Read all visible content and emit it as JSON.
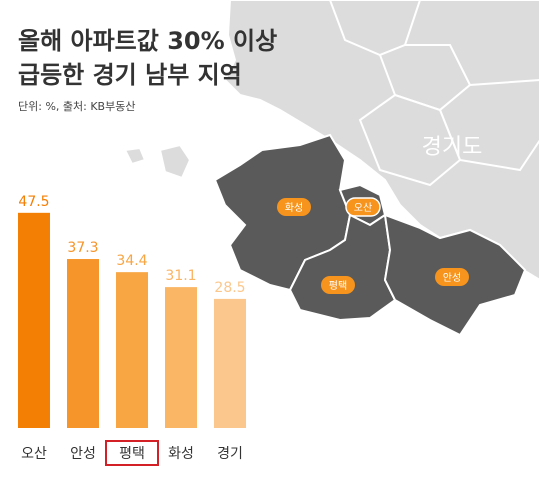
{
  "chart_data": {
    "type": "bar",
    "title": [
      "올해 아파트값 30% 이상",
      "급등한 경기 남부 지역"
    ],
    "subtitle": "단위: %, 출처: KB부동산",
    "categories": [
      "오산",
      "안성",
      "평택",
      "화성",
      "경기"
    ],
    "values": [
      47.5,
      37.3,
      34.4,
      31.1,
      28.5
    ],
    "colors": [
      "#f47f05",
      "#f6952a",
      "#f8a543",
      "#fab565",
      "#fcc78c"
    ],
    "highlight": "평택",
    "map": {
      "province": "경기도",
      "districts": [
        "화성",
        "오산",
        "평택",
        "안성"
      ]
    }
  }
}
